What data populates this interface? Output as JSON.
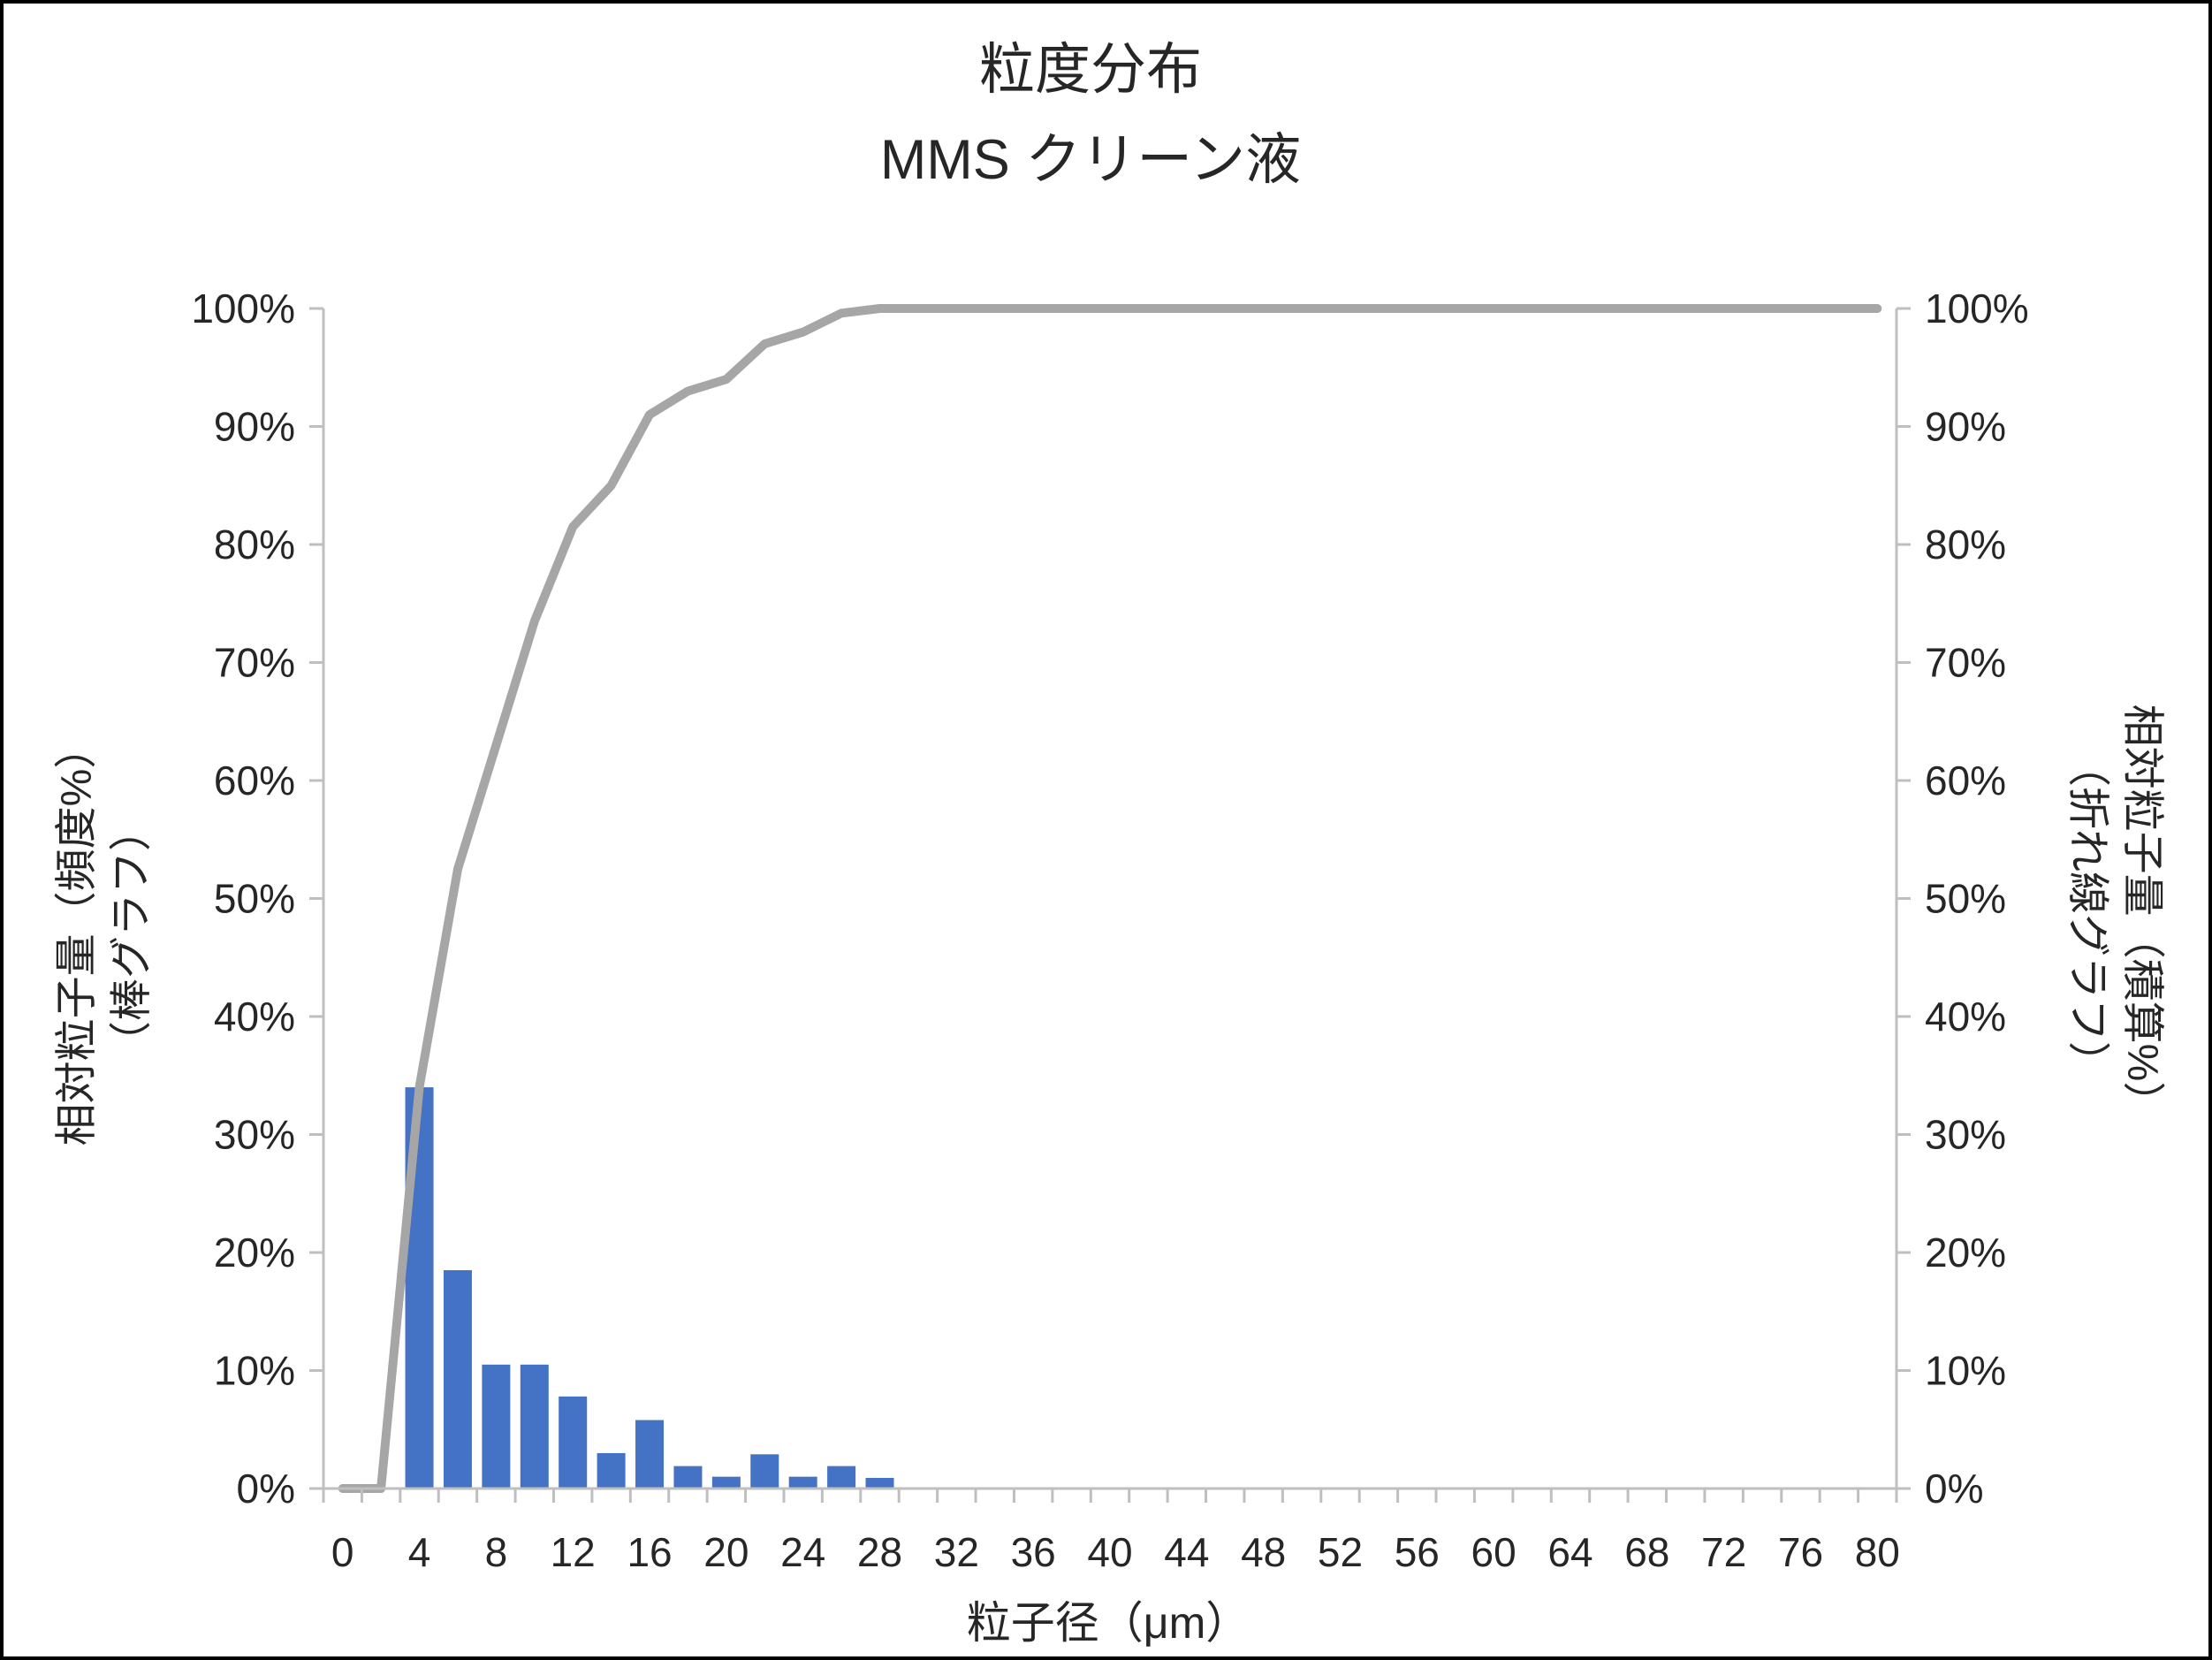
{
  "chart_data": {
    "type": "combo",
    "title": "粒度分布",
    "subtitle": "MMS クリーン液",
    "x_axis": {
      "label": "粒子径（μm）",
      "tick_labels": [
        "0",
        "4",
        "8",
        "12",
        "16",
        "20",
        "24",
        "28",
        "32",
        "36",
        "40",
        "44",
        "48",
        "52",
        "56",
        "60",
        "64",
        "68",
        "72",
        "76",
        "80"
      ],
      "min": 0,
      "max": 80,
      "minor_tick_interval_um": 2
    },
    "y_axis_left": {
      "label_line1": "相対粒子量（頻度%）",
      "label_line2": "（棒グラフ）",
      "tick_labels": [
        "0%",
        "10%",
        "20%",
        "30%",
        "40%",
        "50%",
        "60%",
        "70%",
        "80%",
        "90%",
        "100%"
      ],
      "min": 0,
      "max": 100
    },
    "y_axis_right": {
      "label_line1": "相対粒子量（積算%）",
      "label_line2": "（折れ線グラフ）",
      "tick_labels": [
        "0%",
        "10%",
        "20%",
        "30%",
        "40%",
        "50%",
        "60%",
        "70%",
        "80%",
        "90%",
        "100%"
      ],
      "min": 0,
      "max": 100
    },
    "bar_series": {
      "name": "相対粒子量（頻度%）棒グラフ",
      "color": "#4472C4",
      "bin_width_um": 2,
      "x_um": [
        4,
        6,
        8,
        10,
        12,
        14,
        16,
        18,
        20,
        22,
        24,
        26,
        28
      ],
      "values_pct": [
        34,
        18.5,
        10.5,
        10.5,
        7.8,
        3,
        5.8,
        1.9,
        1,
        2.9,
        1,
        1.9,
        0.9
      ]
    },
    "line_series": {
      "name": "相対粒子量（積算%）折れ線グラフ",
      "color": "#A6A6A6",
      "x_um": [
        0,
        2,
        4,
        6,
        8,
        10,
        12,
        14,
        16,
        18,
        20,
        22,
        24,
        26,
        28,
        30,
        32,
        34,
        36,
        38,
        40,
        42,
        44,
        46,
        48,
        50,
        52,
        54,
        56,
        58,
        60,
        62,
        64,
        66,
        68,
        70,
        72,
        74,
        76,
        78,
        80
      ],
      "values_pct": [
        0,
        0,
        34,
        52.5,
        63,
        73.5,
        81.5,
        85,
        91,
        93,
        94,
        97,
        98,
        99.6,
        100,
        100,
        100,
        100,
        100,
        100,
        100,
        100,
        100,
        100,
        100,
        100,
        100,
        100,
        100,
        100,
        100,
        100,
        100,
        100,
        100,
        100,
        100,
        100,
        100,
        100,
        100
      ]
    },
    "grid": "off",
    "legend": "none",
    "axis_color": "#BFBFBF",
    "text_color": "#262626"
  }
}
